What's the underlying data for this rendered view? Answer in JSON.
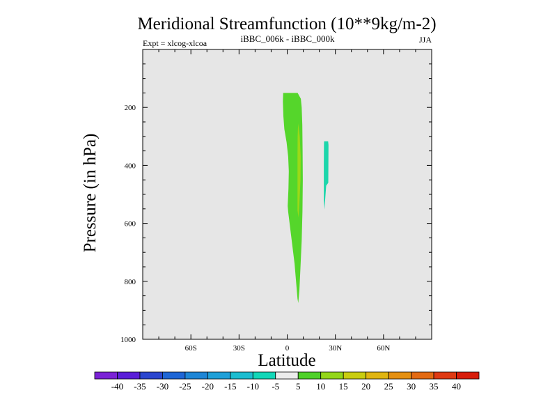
{
  "chart_data": {
    "type": "filled-contour",
    "title": "Meridional Streamfunction (10**9kg/m-2)",
    "subtitle_left": "Expt = xlcog-xlcoa",
    "subtitle_center": "iBBC_006k - iBBC_000k",
    "subtitle_right": "JJA",
    "xlabel": "Latitude",
    "ylabel": "Pressure (in hPa)",
    "xlim": [
      -90,
      90
    ],
    "ylim": [
      0,
      1000
    ],
    "y_inverted": true,
    "x_ticks": [
      {
        "value": -60,
        "label": "60S"
      },
      {
        "value": -30,
        "label": "30S"
      },
      {
        "value": 0,
        "label": "0"
      },
      {
        "value": 30,
        "label": "30N"
      },
      {
        "value": 60,
        "label": "60N"
      }
    ],
    "y_ticks": [
      {
        "value": 200,
        "label": "200"
      },
      {
        "value": 400,
        "label": "400"
      },
      {
        "value": 600,
        "label": "600"
      },
      {
        "value": 800,
        "label": "800"
      },
      {
        "value": 1000,
        "label": "1000"
      }
    ],
    "background_color": "#e6e6e6",
    "colorbar": {
      "label_values": [
        "-40",
        "-35",
        "-30",
        "-25",
        "-20",
        "-15",
        "-10",
        "-5",
        "5",
        "10",
        "15",
        "20",
        "25",
        "30",
        "35",
        "40"
      ],
      "colors": [
        "#7b22d6",
        "#5a1ed8",
        "#2b46cf",
        "#1e66d6",
        "#1e86d6",
        "#1fa0d8",
        "#1cbdd0",
        "#12d7b8",
        "#ececec",
        "#4fd12a",
        "#93d61a",
        "#c9cd10",
        "#e0b511",
        "#e59011",
        "#e36a12",
        "#df3a13",
        "#d81d0b"
      ]
    },
    "regions": [
      {
        "name": "positive-5-10",
        "level": "5 to 10",
        "color": "#55d62b",
        "lon_p": [
          [
            -2.5,
            150
          ],
          [
            6.5,
            150
          ],
          [
            8.5,
            170
          ],
          [
            9.0,
            200
          ],
          [
            9.4,
            260
          ],
          [
            9.6,
            350
          ],
          [
            9.7,
            450
          ],
          [
            9.5,
            560
          ],
          [
            9.0,
            660
          ],
          [
            8.2,
            760
          ],
          [
            7.6,
            830
          ],
          [
            6.9,
            875
          ],
          [
            6.4,
            860
          ],
          [
            5.8,
            820
          ],
          [
            4.6,
            740
          ],
          [
            2.6,
            650
          ],
          [
            0.6,
            560
          ],
          [
            0.3,
            540
          ],
          [
            0.8,
            480
          ],
          [
            1.0,
            420
          ],
          [
            0.6,
            370
          ],
          [
            -0.4,
            320
          ],
          [
            -1.8,
            275
          ],
          [
            -2.4,
            230
          ],
          [
            -2.7,
            180
          ]
        ]
      },
      {
        "name": "positive-10-15",
        "level": "10 to 15",
        "color": "#9bd917",
        "lon_p": [
          [
            6.8,
            255
          ],
          [
            7.8,
            300
          ],
          [
            8.4,
            370
          ],
          [
            8.3,
            450
          ],
          [
            7.6,
            530
          ],
          [
            7.0,
            580
          ],
          [
            6.4,
            555
          ],
          [
            6.4,
            450
          ],
          [
            6.4,
            370
          ],
          [
            6.5,
            300
          ]
        ]
      },
      {
        "name": "negative-10-5",
        "level": "-10 to -5",
        "color": "#1cd6ab",
        "lon_p": [
          [
            23.0,
            317
          ],
          [
            25.5,
            317
          ],
          [
            25.7,
            330
          ],
          [
            25.6,
            460
          ],
          [
            24.3,
            470
          ],
          [
            23.7,
            515
          ],
          [
            23.3,
            552
          ],
          [
            22.8,
            520
          ],
          [
            22.8,
            400
          ],
          [
            22.9,
            330
          ]
        ]
      }
    ]
  }
}
